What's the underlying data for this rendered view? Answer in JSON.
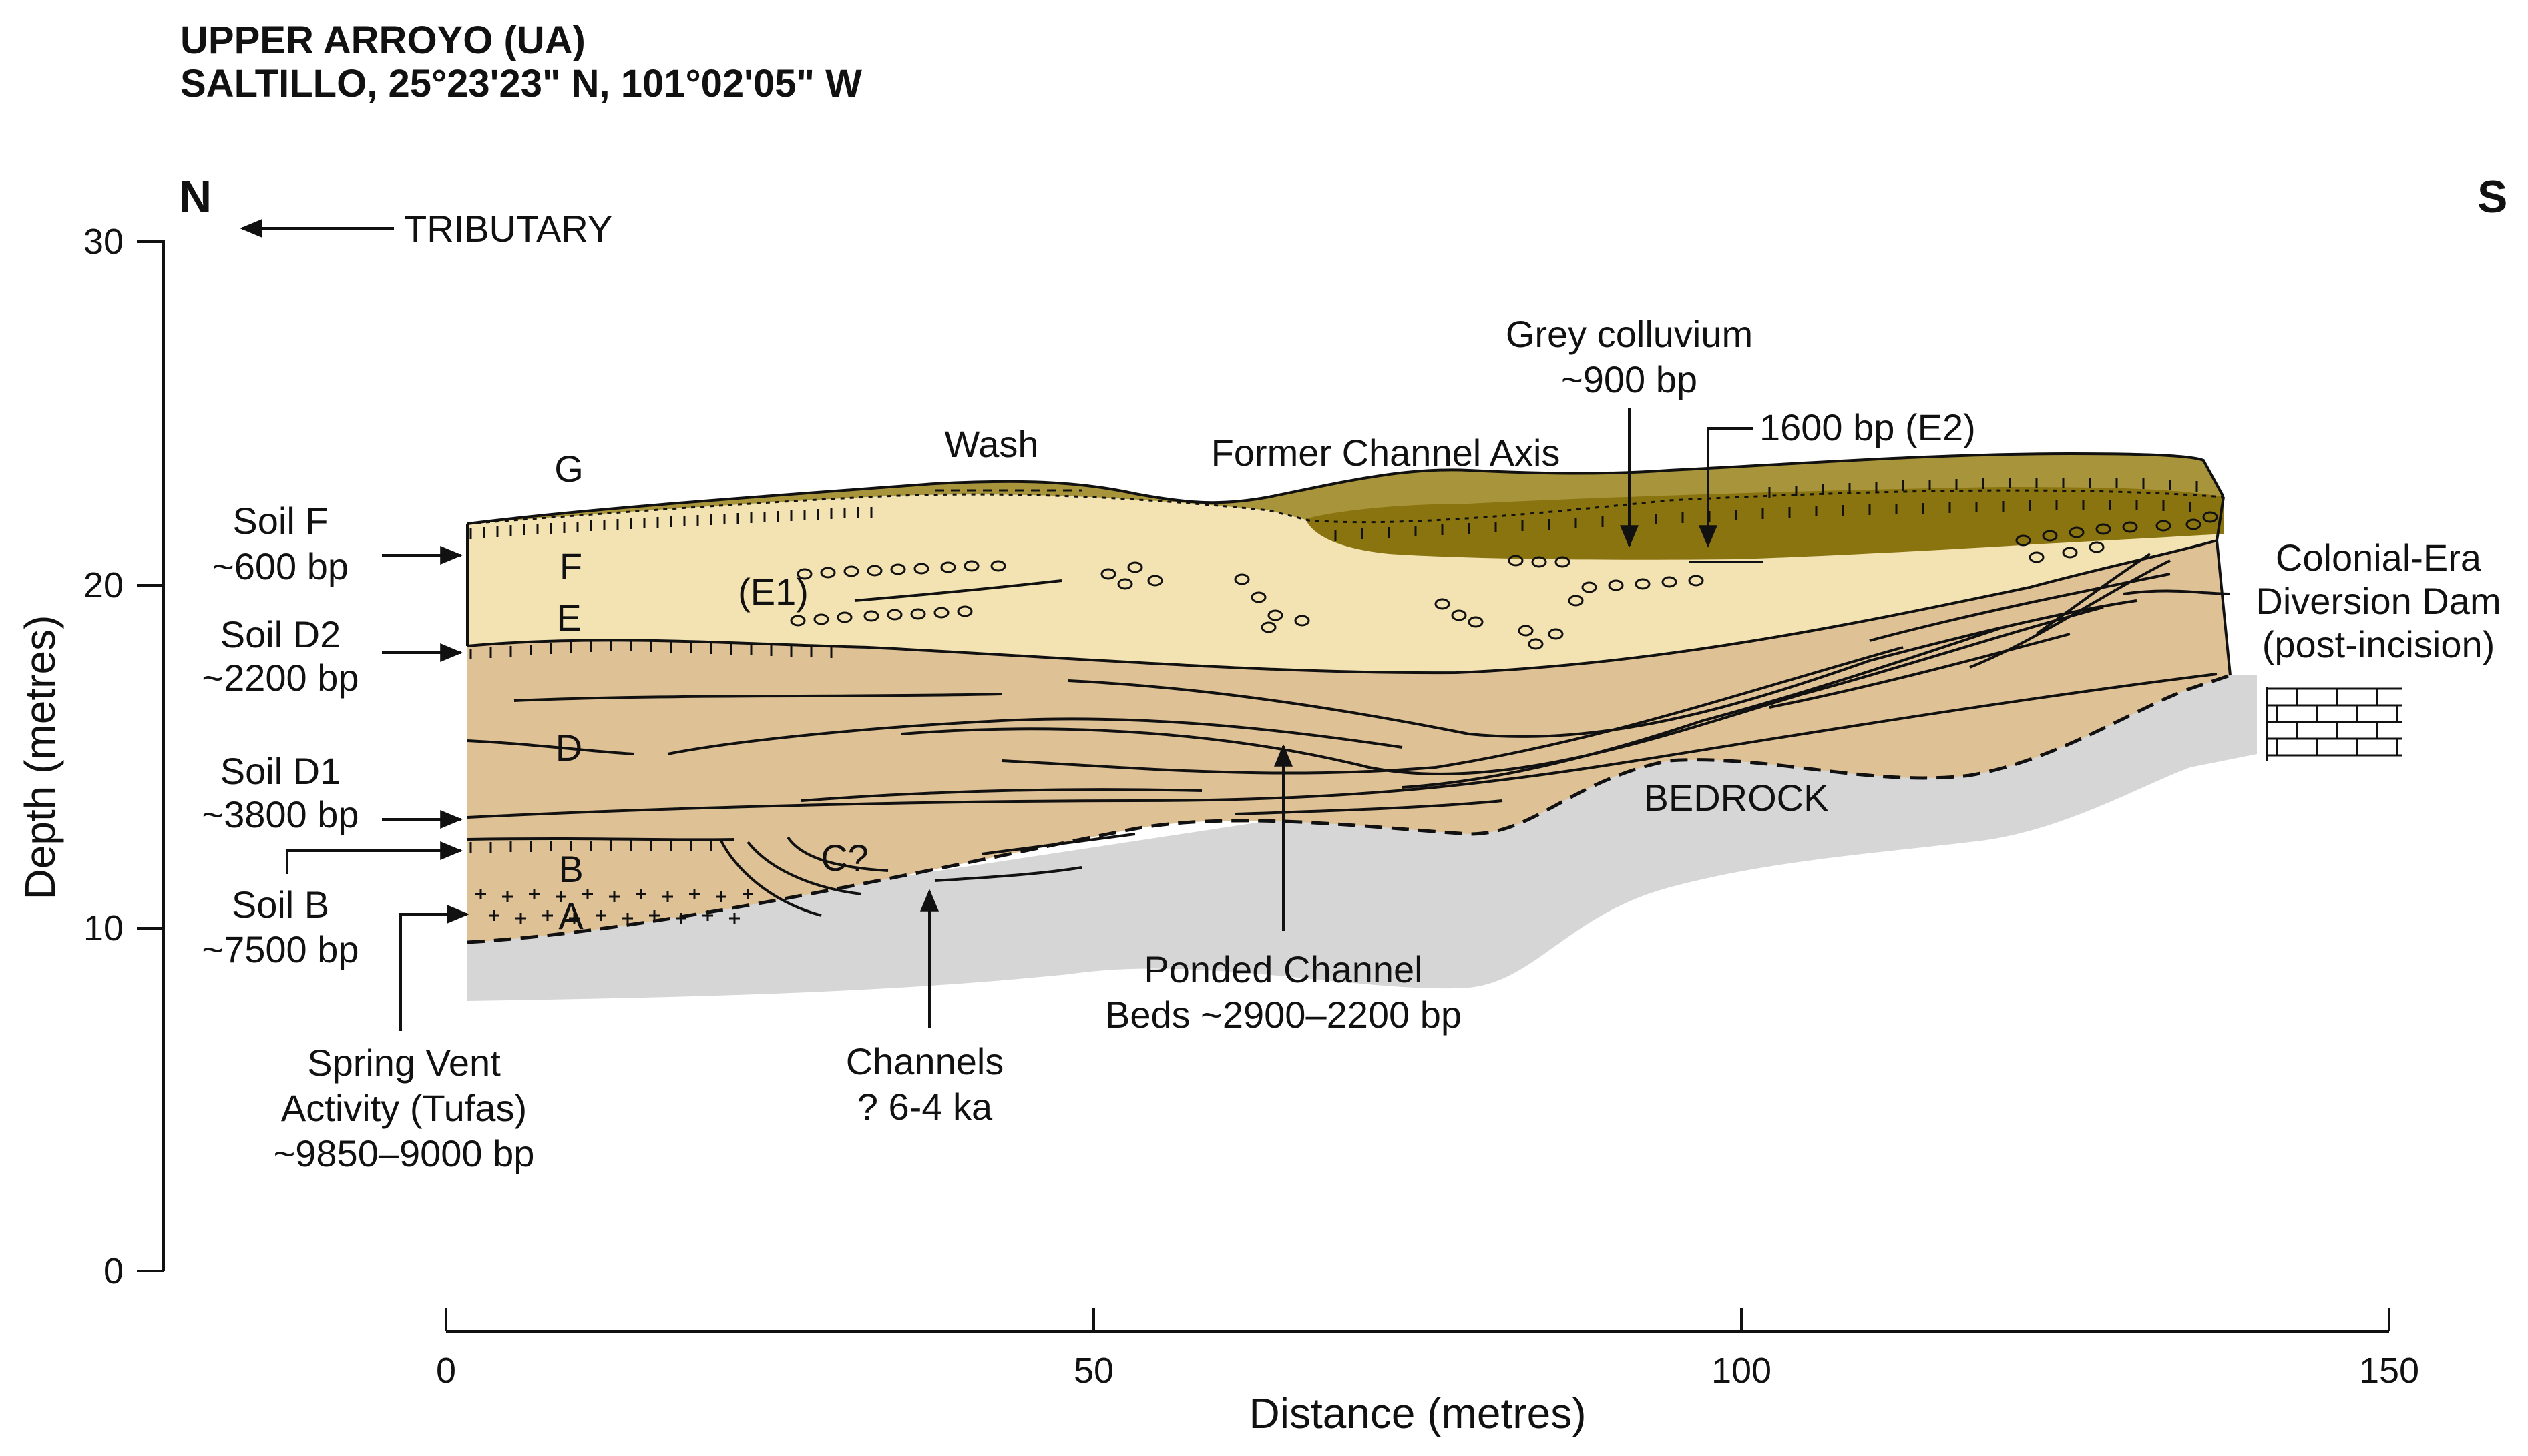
{
  "title": {
    "line1": "UPPER ARROYO (UA)",
    "line2": "SALTILLO, 25°23'23\" N, 101°02'05\" W"
  },
  "directions": {
    "north": "N",
    "south": "S",
    "tributary": "TRIBUTARY"
  },
  "y_axis": {
    "label": "Depth (metres)",
    "ticks": [
      "30",
      "20",
      "10",
      "0"
    ]
  },
  "x_axis": {
    "label": "Distance (metres)",
    "ticks": [
      "0",
      "50",
      "100",
      "150"
    ]
  },
  "units": {
    "G": "G",
    "F": "F",
    "E": "E",
    "E1": "(E1)",
    "D": "D",
    "C": "C?",
    "B": "B",
    "A": "A",
    "bedrock": "BEDROCK"
  },
  "left_labels": {
    "soil_f": "Soil F",
    "soil_f_age": "~600 bp",
    "soil_d2": "Soil D2",
    "soil_d2_age": "~2200 bp",
    "soil_d1": "Soil D1",
    "soil_d1_age": "~3800 bp",
    "soil_b": "Soil B",
    "soil_b_age": "~7500 bp"
  },
  "annotations": {
    "wash": "Wash",
    "former_channel": "Former Channel Axis",
    "grey_colluvium": "Grey colluvium",
    "grey_colluvium_age": "~900 bp",
    "e2": "1600 bp (E2)",
    "dam_1": "Colonial-Era",
    "dam_2": "Diversion Dam",
    "dam_3": "(post-incision)",
    "spring_1": "Spring Vent",
    "spring_2": "Activity (Tufas)",
    "spring_3": "~9850–9000 bp",
    "channels_1": "Channels",
    "channels_2": "? 6-4 ka",
    "ponded_1": "Ponded Channel",
    "ponded_2": "Beds ~2900–2200 bp"
  },
  "colors": {
    "unit_g": "#a8943a",
    "grey_colluvium_fill": "#8a7410",
    "unit_ef": "#f3e3b3",
    "unit_abd": "#dfc196",
    "bedrock": "#d6d6d6",
    "line": "#111111"
  }
}
